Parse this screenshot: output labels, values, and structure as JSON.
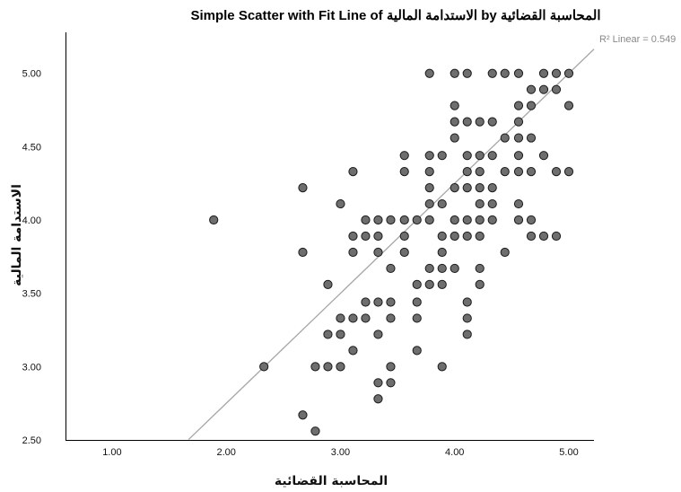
{
  "chart_data": {
    "type": "scatter",
    "title": "Simple Scatter with Fit Line of الاستدامة المالية by المحاسبة القضائية",
    "xlabel": "المحاسبة القضائية",
    "ylabel": "الاستدامة المالية",
    "xlim": [
      0.6,
      5.22
    ],
    "ylim": [
      2.5,
      5.28
    ],
    "xticks": [
      1.0,
      2.0,
      3.0,
      4.0,
      5.0
    ],
    "yticks": [
      2.5,
      3.0,
      3.5,
      4.0,
      4.5,
      5.0
    ],
    "xtick_labels": [
      "1.00",
      "2.00",
      "3.00",
      "4.00",
      "5.00"
    ],
    "ytick_labels": [
      "2.50",
      "3.00",
      "3.50",
      "4.00",
      "4.50",
      "5.00"
    ],
    "grid": false,
    "legend": "",
    "fit_line": {
      "type": "linear",
      "slope": 0.75,
      "intercept": 1.25,
      "x_range": [
        1.67,
        5.22
      ],
      "label": "R² Linear = 0.549"
    },
    "series": [
      {
        "points": [
          [
            1.89,
            4.0
          ],
          [
            2.33,
            3.0
          ],
          [
            2.67,
            4.22
          ],
          [
            2.67,
            3.78
          ],
          [
            2.67,
            2.67
          ],
          [
            2.78,
            2.56
          ],
          [
            2.78,
            3.0
          ],
          [
            2.89,
            3.0
          ],
          [
            2.89,
            3.22
          ],
          [
            2.89,
            3.56
          ],
          [
            3.0,
            4.11
          ],
          [
            3.0,
            3.33
          ],
          [
            3.0,
            3.22
          ],
          [
            3.0,
            3.0
          ],
          [
            3.11,
            4.33
          ],
          [
            3.11,
            3.89
          ],
          [
            3.11,
            3.78
          ],
          [
            3.11,
            3.33
          ],
          [
            3.11,
            3.11
          ],
          [
            3.22,
            4.0
          ],
          [
            3.22,
            3.89
          ],
          [
            3.22,
            3.44
          ],
          [
            3.22,
            3.33
          ],
          [
            3.33,
            4.0
          ],
          [
            3.33,
            3.89
          ],
          [
            3.33,
            3.78
          ],
          [
            3.33,
            3.44
          ],
          [
            3.33,
            3.22
          ],
          [
            3.33,
            2.89
          ],
          [
            3.33,
            2.78
          ],
          [
            3.44,
            4.0
          ],
          [
            3.44,
            3.67
          ],
          [
            3.44,
            3.44
          ],
          [
            3.44,
            3.33
          ],
          [
            3.44,
            3.0
          ],
          [
            3.44,
            2.89
          ],
          [
            3.56,
            4.44
          ],
          [
            3.56,
            4.33
          ],
          [
            3.56,
            4.0
          ],
          [
            3.56,
            3.89
          ],
          [
            3.56,
            3.78
          ],
          [
            3.67,
            4.0
          ],
          [
            3.67,
            3.56
          ],
          [
            3.67,
            3.44
          ],
          [
            3.67,
            3.33
          ],
          [
            3.67,
            3.11
          ],
          [
            3.78,
            5.0
          ],
          [
            3.78,
            4.44
          ],
          [
            3.78,
            4.33
          ],
          [
            3.78,
            4.22
          ],
          [
            3.78,
            4.11
          ],
          [
            3.78,
            4.0
          ],
          [
            3.78,
            3.67
          ],
          [
            3.78,
            3.56
          ],
          [
            3.89,
            4.44
          ],
          [
            3.89,
            4.11
          ],
          [
            3.89,
            3.89
          ],
          [
            3.89,
            3.78
          ],
          [
            3.89,
            3.67
          ],
          [
            3.89,
            3.56
          ],
          [
            3.89,
            3.0
          ],
          [
            4.0,
            5.0
          ],
          [
            4.0,
            4.78
          ],
          [
            4.0,
            4.67
          ],
          [
            4.0,
            4.56
          ],
          [
            4.0,
            4.22
          ],
          [
            4.0,
            4.0
          ],
          [
            4.0,
            3.89
          ],
          [
            4.0,
            3.67
          ],
          [
            4.11,
            5.0
          ],
          [
            4.11,
            4.67
          ],
          [
            4.11,
            4.44
          ],
          [
            4.11,
            4.33
          ],
          [
            4.11,
            4.22
          ],
          [
            4.11,
            4.0
          ],
          [
            4.11,
            3.89
          ],
          [
            4.11,
            3.44
          ],
          [
            4.11,
            3.33
          ],
          [
            4.11,
            3.22
          ],
          [
            4.22,
            4.67
          ],
          [
            4.22,
            4.44
          ],
          [
            4.22,
            4.33
          ],
          [
            4.22,
            4.22
          ],
          [
            4.22,
            4.11
          ],
          [
            4.22,
            4.0
          ],
          [
            4.22,
            3.89
          ],
          [
            4.22,
            3.67
          ],
          [
            4.22,
            3.56
          ],
          [
            4.33,
            5.0
          ],
          [
            4.33,
            4.67
          ],
          [
            4.33,
            4.44
          ],
          [
            4.33,
            4.22
          ],
          [
            4.33,
            4.11
          ],
          [
            4.33,
            4.0
          ],
          [
            4.44,
            5.0
          ],
          [
            4.44,
            4.56
          ],
          [
            4.44,
            4.33
          ],
          [
            4.44,
            3.78
          ],
          [
            4.56,
            5.0
          ],
          [
            4.56,
            4.78
          ],
          [
            4.56,
            4.67
          ],
          [
            4.56,
            4.56
          ],
          [
            4.56,
            4.44
          ],
          [
            4.56,
            4.33
          ],
          [
            4.56,
            4.11
          ],
          [
            4.56,
            4.0
          ],
          [
            4.67,
            4.89
          ],
          [
            4.67,
            4.78
          ],
          [
            4.67,
            4.56
          ],
          [
            4.67,
            4.33
          ],
          [
            4.67,
            4.0
          ],
          [
            4.67,
            3.89
          ],
          [
            4.78,
            5.0
          ],
          [
            4.78,
            4.89
          ],
          [
            4.78,
            4.44
          ],
          [
            4.78,
            3.89
          ],
          [
            4.89,
            5.0
          ],
          [
            4.89,
            4.89
          ],
          [
            4.89,
            4.33
          ],
          [
            4.89,
            3.89
          ],
          [
            5.0,
            5.0
          ],
          [
            5.0,
            4.78
          ],
          [
            5.0,
            4.33
          ]
        ]
      }
    ]
  }
}
